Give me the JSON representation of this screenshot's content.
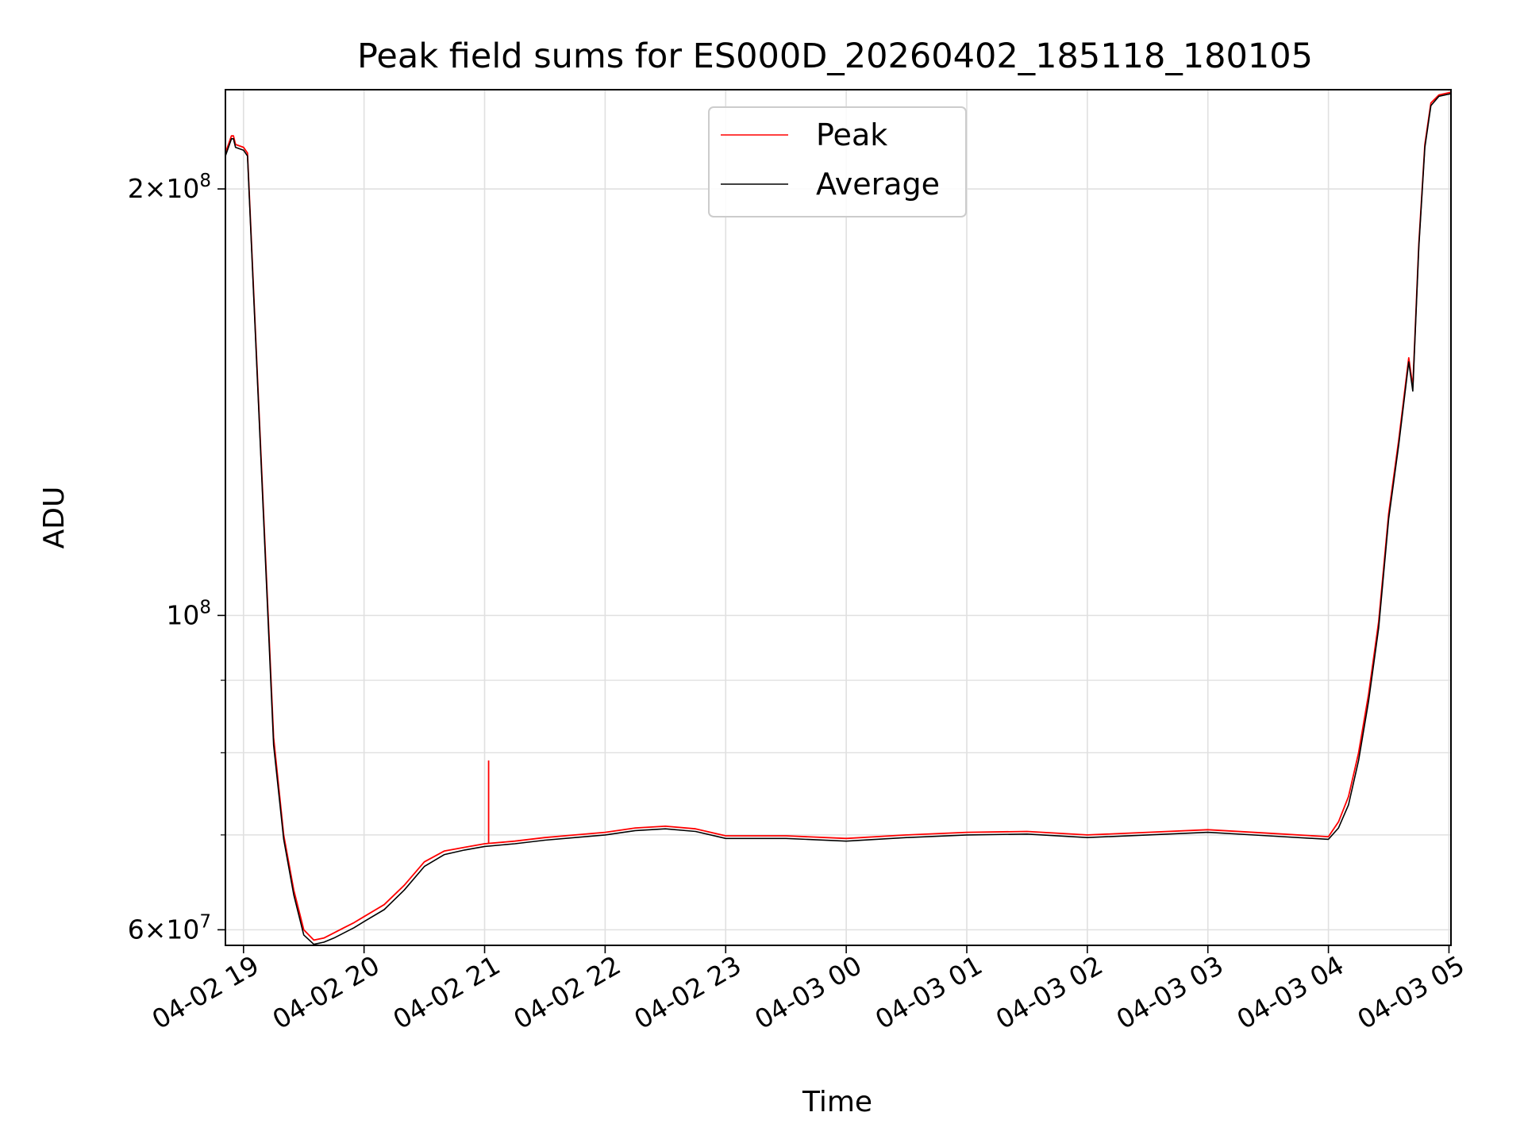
{
  "chart_data": {
    "type": "line",
    "title": "Peak field sums for ES000D_20260402_185118_180105",
    "xlabel": "Time",
    "ylabel": "ADU",
    "yscale": "log",
    "grid": true,
    "legend_position": "upper-center",
    "xlim": [
      "2026-04-02 18:51",
      "2026-04-03 05:01"
    ],
    "ylim": [
      58500000,
      235000000
    ],
    "x_ticks": [
      {
        "value": "2026-04-02 19:00",
        "label": "04-02 19"
      },
      {
        "value": "2026-04-02 20:00",
        "label": "04-02 20"
      },
      {
        "value": "2026-04-02 21:00",
        "label": "04-02 21"
      },
      {
        "value": "2026-04-02 22:00",
        "label": "04-02 22"
      },
      {
        "value": "2026-04-02 23:00",
        "label": "04-02 23"
      },
      {
        "value": "2026-04-03 00:00",
        "label": "04-03 00"
      },
      {
        "value": "2026-04-03 01:00",
        "label": "04-03 01"
      },
      {
        "value": "2026-04-03 02:00",
        "label": "04-03 02"
      },
      {
        "value": "2026-04-03 03:00",
        "label": "04-03 03"
      },
      {
        "value": "2026-04-03 04:00",
        "label": "04-03 04"
      },
      {
        "value": "2026-04-03 05:00",
        "label": "04-03 05"
      }
    ],
    "y_ticks": [
      {
        "value": 60000000,
        "base": "6",
        "exp": "7"
      },
      {
        "value": 100000000,
        "base": "",
        "exp": "8"
      },
      {
        "value": 200000000,
        "base": "2",
        "exp": "8"
      }
    ],
    "y_minor_ticks": [
      70000000,
      80000000,
      90000000
    ],
    "series": [
      {
        "name": "Peak",
        "color": "#ff0000",
        "points": [
          [
            "2026-04-02 18:51",
            212000000
          ],
          [
            "2026-04-02 18:54",
            218000000
          ],
          [
            "2026-04-02 18:55",
            218000000
          ],
          [
            "2026-04-02 18:56",
            215000000
          ],
          [
            "2026-04-02 19:00",
            214000000
          ],
          [
            "2026-04-02 19:02",
            212000000
          ],
          [
            "2026-04-02 19:05",
            170000000
          ],
          [
            "2026-04-02 19:10",
            118000000
          ],
          [
            "2026-04-02 19:15",
            82000000
          ],
          [
            "2026-04-02 19:20",
            70000000
          ],
          [
            "2026-04-02 19:25",
            64000000
          ],
          [
            "2026-04-02 19:30",
            60000000
          ],
          [
            "2026-04-02 19:35",
            59000000
          ],
          [
            "2026-04-02 19:40",
            59200000
          ],
          [
            "2026-04-02 19:45",
            59700000
          ],
          [
            "2026-04-02 19:50",
            60200000
          ],
          [
            "2026-04-02 19:55",
            60700000
          ],
          [
            "2026-04-02 20:00",
            61300000
          ],
          [
            "2026-04-02 20:10",
            62500000
          ],
          [
            "2026-04-02 20:20",
            64500000
          ],
          [
            "2026-04-02 20:30",
            67000000
          ],
          [
            "2026-04-02 20:40",
            68200000
          ],
          [
            "2026-04-02 20:50",
            68600000
          ],
          [
            "2026-04-02 21:00",
            69000000
          ],
          [
            "2026-04-02 21:15",
            69300000
          ],
          [
            "2026-04-02 21:30",
            69700000
          ],
          [
            "2026-04-02 21:45",
            70000000
          ],
          [
            "2026-04-02 22:00",
            70300000
          ],
          [
            "2026-04-02 22:15",
            70800000
          ],
          [
            "2026-04-02 22:30",
            71000000
          ],
          [
            "2026-04-02 22:45",
            70700000
          ],
          [
            "2026-04-02 23:00",
            69900000
          ],
          [
            "2026-04-02 23:30",
            69900000
          ],
          [
            "2026-04-03 00:00",
            69600000
          ],
          [
            "2026-04-03 00:30",
            70000000
          ],
          [
            "2026-04-03 01:00",
            70300000
          ],
          [
            "2026-04-03 01:30",
            70400000
          ],
          [
            "2026-04-03 02:00",
            70000000
          ],
          [
            "2026-04-03 02:30",
            70300000
          ],
          [
            "2026-04-03 03:00",
            70600000
          ],
          [
            "2026-04-03 03:30",
            70200000
          ],
          [
            "2026-04-03 04:00",
            69800000
          ],
          [
            "2026-04-03 04:05",
            71500000
          ],
          [
            "2026-04-03 04:10",
            74500000
          ],
          [
            "2026-04-03 04:15",
            80000000
          ],
          [
            "2026-04-03 04:20",
            88000000
          ],
          [
            "2026-04-03 04:25",
            99000000
          ],
          [
            "2026-04-03 04:30",
            118000000
          ],
          [
            "2026-04-03 04:35",
            133000000
          ],
          [
            "2026-04-03 04:40",
            152000000
          ],
          [
            "2026-04-03 04:42",
            145000000
          ],
          [
            "2026-04-03 04:45",
            183000000
          ],
          [
            "2026-04-03 04:48",
            215000000
          ],
          [
            "2026-04-03 04:51",
            230000000
          ],
          [
            "2026-04-03 04:55",
            233000000
          ],
          [
            "2026-04-03 05:01",
            234000000
          ]
        ]
      },
      {
        "name": "Average",
        "color": "#000000",
        "points": [
          [
            "2026-04-02 18:51",
            211000000
          ],
          [
            "2026-04-02 18:54",
            217000000
          ],
          [
            "2026-04-02 18:55",
            217000000
          ],
          [
            "2026-04-02 18:56",
            214000000
          ],
          [
            "2026-04-02 19:00",
            213000000
          ],
          [
            "2026-04-02 19:02",
            211000000
          ],
          [
            "2026-04-02 19:05",
            169000000
          ],
          [
            "2026-04-02 19:10",
            117000000
          ],
          [
            "2026-04-02 19:15",
            81000000
          ],
          [
            "2026-04-02 19:20",
            69500000
          ],
          [
            "2026-04-02 19:25",
            63500000
          ],
          [
            "2026-04-02 19:30",
            59500000
          ],
          [
            "2026-04-02 19:35",
            58600000
          ],
          [
            "2026-04-02 19:40",
            58800000
          ],
          [
            "2026-04-02 19:45",
            59200000
          ],
          [
            "2026-04-02 19:50",
            59700000
          ],
          [
            "2026-04-02 19:55",
            60200000
          ],
          [
            "2026-04-02 20:00",
            60800000
          ],
          [
            "2026-04-02 20:10",
            62000000
          ],
          [
            "2026-04-02 20:20",
            64000000
          ],
          [
            "2026-04-02 20:30",
            66500000
          ],
          [
            "2026-04-02 20:40",
            67800000
          ],
          [
            "2026-04-02 20:50",
            68300000
          ],
          [
            "2026-04-02 21:00",
            68700000
          ],
          [
            "2026-04-02 21:15",
            69000000
          ],
          [
            "2026-04-02 21:30",
            69400000
          ],
          [
            "2026-04-02 21:45",
            69700000
          ],
          [
            "2026-04-02 22:00",
            70000000
          ],
          [
            "2026-04-02 22:15",
            70500000
          ],
          [
            "2026-04-02 22:30",
            70700000
          ],
          [
            "2026-04-02 22:45",
            70400000
          ],
          [
            "2026-04-02 23:00",
            69600000
          ],
          [
            "2026-04-02 23:30",
            69600000
          ],
          [
            "2026-04-03 00:00",
            69300000
          ],
          [
            "2026-04-03 00:30",
            69700000
          ],
          [
            "2026-04-03 01:00",
            70000000
          ],
          [
            "2026-04-03 01:30",
            70100000
          ],
          [
            "2026-04-03 02:00",
            69700000
          ],
          [
            "2026-04-03 02:30",
            70000000
          ],
          [
            "2026-04-03 03:00",
            70300000
          ],
          [
            "2026-04-03 03:30",
            69900000
          ],
          [
            "2026-04-03 04:00",
            69500000
          ],
          [
            "2026-04-03 04:05",
            70800000
          ],
          [
            "2026-04-03 04:10",
            73500000
          ],
          [
            "2026-04-03 04:15",
            79000000
          ],
          [
            "2026-04-03 04:20",
            87000000
          ],
          [
            "2026-04-03 04:25",
            98000000
          ],
          [
            "2026-04-03 04:30",
            117000000
          ],
          [
            "2026-04-03 04:35",
            132000000
          ],
          [
            "2026-04-03 04:40",
            151000000
          ],
          [
            "2026-04-03 04:42",
            144000000
          ],
          [
            "2026-04-03 04:45",
            182000000
          ],
          [
            "2026-04-03 04:48",
            214000000
          ],
          [
            "2026-04-03 04:51",
            229000000
          ],
          [
            "2026-04-03 04:55",
            232500000
          ],
          [
            "2026-04-03 05:01",
            233500000
          ]
        ]
      }
    ],
    "annotations": [
      {
        "series": "Peak",
        "x": "2026-04-02 21:02",
        "y": 79000000,
        "note_type": "spike"
      }
    ]
  }
}
